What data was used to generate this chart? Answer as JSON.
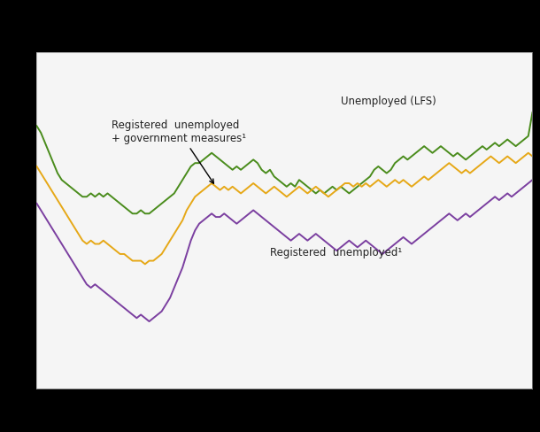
{
  "background_color": "#000000",
  "plot_bg_color": "#f5f5f5",
  "grid_color": "#cccccc",
  "line_green_color": "#4a8c1c",
  "line_orange_color": "#e6a817",
  "line_purple_color": "#7b3fa0",
  "line_width": 1.4,
  "annotation_lfs": "Unemployed (LFS)",
  "annotation_reg": "Registered  unemployed¹",
  "annotation_gov": "Registered  unemployed\n+ government measures¹",
  "green_data": [
    0.78,
    0.76,
    0.73,
    0.7,
    0.67,
    0.64,
    0.62,
    0.61,
    0.6,
    0.59,
    0.58,
    0.57,
    0.57,
    0.58,
    0.57,
    0.58,
    0.57,
    0.58,
    0.57,
    0.56,
    0.55,
    0.54,
    0.53,
    0.52,
    0.52,
    0.53,
    0.52,
    0.52,
    0.53,
    0.54,
    0.55,
    0.56,
    0.57,
    0.58,
    0.6,
    0.62,
    0.64,
    0.66,
    0.67,
    0.67,
    0.68,
    0.69,
    0.7,
    0.69,
    0.68,
    0.67,
    0.66,
    0.65,
    0.66,
    0.65,
    0.66,
    0.67,
    0.68,
    0.67,
    0.65,
    0.64,
    0.65,
    0.63,
    0.62,
    0.61,
    0.6,
    0.61,
    0.6,
    0.62,
    0.61,
    0.6,
    0.59,
    0.58,
    0.59,
    0.58,
    0.59,
    0.6,
    0.59,
    0.6,
    0.59,
    0.58,
    0.59,
    0.6,
    0.61,
    0.62,
    0.63,
    0.65,
    0.66,
    0.65,
    0.64,
    0.65,
    0.67,
    0.68,
    0.69,
    0.68,
    0.69,
    0.7,
    0.71,
    0.72,
    0.71,
    0.7,
    0.71,
    0.72,
    0.71,
    0.7,
    0.69,
    0.7,
    0.69,
    0.68,
    0.69,
    0.7,
    0.71,
    0.72,
    0.71,
    0.72,
    0.73,
    0.72,
    0.73,
    0.74,
    0.73,
    0.72,
    0.73,
    0.74,
    0.75,
    0.82
  ],
  "orange_data": [
    0.66,
    0.64,
    0.62,
    0.6,
    0.58,
    0.56,
    0.54,
    0.52,
    0.5,
    0.48,
    0.46,
    0.44,
    0.43,
    0.44,
    0.43,
    0.43,
    0.44,
    0.43,
    0.42,
    0.41,
    0.4,
    0.4,
    0.39,
    0.38,
    0.38,
    0.38,
    0.37,
    0.38,
    0.38,
    0.39,
    0.4,
    0.42,
    0.44,
    0.46,
    0.48,
    0.5,
    0.53,
    0.55,
    0.57,
    0.58,
    0.59,
    0.6,
    0.61,
    0.6,
    0.59,
    0.6,
    0.59,
    0.6,
    0.59,
    0.58,
    0.59,
    0.6,
    0.61,
    0.6,
    0.59,
    0.58,
    0.59,
    0.6,
    0.59,
    0.58,
    0.57,
    0.58,
    0.59,
    0.6,
    0.59,
    0.58,
    0.59,
    0.6,
    0.59,
    0.58,
    0.57,
    0.58,
    0.59,
    0.6,
    0.61,
    0.61,
    0.6,
    0.61,
    0.6,
    0.61,
    0.6,
    0.61,
    0.62,
    0.61,
    0.6,
    0.61,
    0.62,
    0.61,
    0.62,
    0.61,
    0.6,
    0.61,
    0.62,
    0.63,
    0.62,
    0.63,
    0.64,
    0.65,
    0.66,
    0.67,
    0.66,
    0.65,
    0.64,
    0.65,
    0.64,
    0.65,
    0.66,
    0.67,
    0.68,
    0.69,
    0.68,
    0.67,
    0.68,
    0.69,
    0.68,
    0.67,
    0.68,
    0.69,
    0.7,
    0.69
  ],
  "purple_data": [
    0.55,
    0.53,
    0.51,
    0.49,
    0.47,
    0.45,
    0.43,
    0.41,
    0.39,
    0.37,
    0.35,
    0.33,
    0.31,
    0.3,
    0.31,
    0.3,
    0.29,
    0.28,
    0.27,
    0.26,
    0.25,
    0.24,
    0.23,
    0.22,
    0.21,
    0.22,
    0.21,
    0.2,
    0.21,
    0.22,
    0.23,
    0.25,
    0.27,
    0.3,
    0.33,
    0.36,
    0.4,
    0.44,
    0.47,
    0.49,
    0.5,
    0.51,
    0.52,
    0.51,
    0.51,
    0.52,
    0.51,
    0.5,
    0.49,
    0.5,
    0.51,
    0.52,
    0.53,
    0.52,
    0.51,
    0.5,
    0.49,
    0.48,
    0.47,
    0.46,
    0.45,
    0.44,
    0.45,
    0.46,
    0.45,
    0.44,
    0.45,
    0.46,
    0.45,
    0.44,
    0.43,
    0.42,
    0.41,
    0.42,
    0.43,
    0.44,
    0.43,
    0.42,
    0.43,
    0.44,
    0.43,
    0.42,
    0.41,
    0.4,
    0.41,
    0.42,
    0.43,
    0.44,
    0.45,
    0.44,
    0.43,
    0.44,
    0.45,
    0.46,
    0.47,
    0.48,
    0.49,
    0.5,
    0.51,
    0.52,
    0.51,
    0.5,
    0.51,
    0.52,
    0.51,
    0.52,
    0.53,
    0.54,
    0.55,
    0.56,
    0.57,
    0.56,
    0.57,
    0.58,
    0.57,
    0.58,
    0.59,
    0.6,
    0.61,
    0.62
  ]
}
